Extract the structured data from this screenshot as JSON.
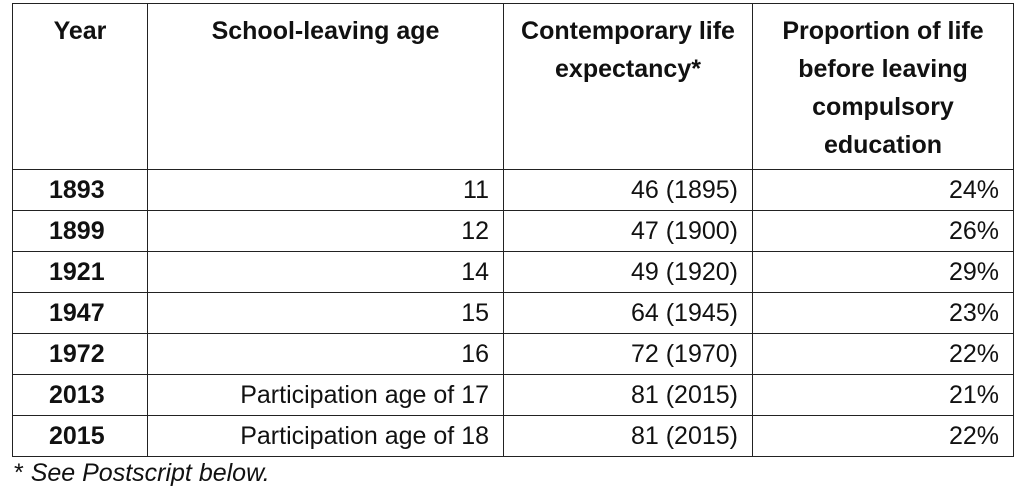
{
  "table": {
    "headers": {
      "year": "Year",
      "age": "School-leaving age",
      "life": "Contemporary life expectancy*",
      "proportion": "Proportion of life before leaving compulsory education"
    },
    "rows": [
      {
        "year": "1893",
        "age": "11",
        "life": "46 (1895)",
        "proportion": "24%"
      },
      {
        "year": "1899",
        "age": "12",
        "life": "47 (1900)",
        "proportion": "26%"
      },
      {
        "year": "1921",
        "age": "14",
        "life": "49 (1920)",
        "proportion": "29%"
      },
      {
        "year": "1947",
        "age": "15",
        "life": "64 (1945)",
        "proportion": "23%"
      },
      {
        "year": "1972",
        "age": "16",
        "life": "72 (1970)",
        "proportion": "22%"
      },
      {
        "year": "2013",
        "age": "Participation age of 17",
        "life": "81 (2015)",
        "proportion": "21%"
      },
      {
        "year": "2015",
        "age": "Participation age of 18",
        "life": "81 (2015)",
        "proportion": "22%"
      }
    ]
  },
  "footnote": {
    "marker": "*",
    "text": "See Postscript below."
  }
}
